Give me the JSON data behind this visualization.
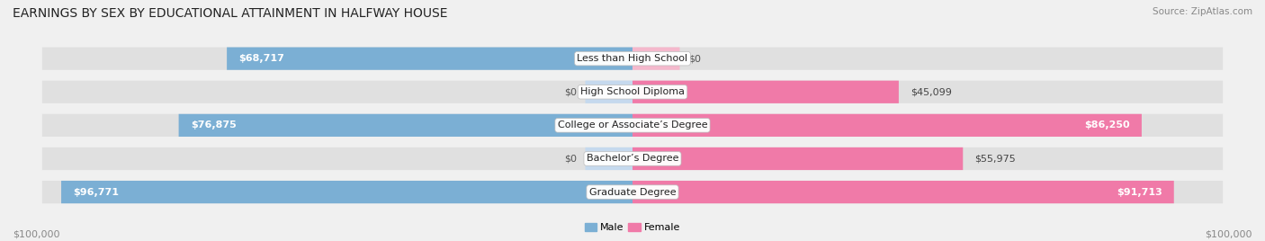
{
  "title": "EARNINGS BY SEX BY EDUCATIONAL ATTAINMENT IN HALFWAY HOUSE",
  "source": "Source: ZipAtlas.com",
  "categories": [
    "Less than High School",
    "High School Diploma",
    "College or Associate’s Degree",
    "Bachelor’s Degree",
    "Graduate Degree"
  ],
  "male_values": [
    68717,
    0,
    76875,
    0,
    96771
  ],
  "female_values": [
    0,
    45099,
    86250,
    55975,
    91713
  ],
  "male_color": "#7bafd4",
  "female_color": "#f07aa8",
  "male_stub_color": "#c5d9ee",
  "female_stub_color": "#f5b8cc",
  "bg_color": "#e2e2e2",
  "max_value": 100000,
  "stub_value": 8000,
  "xlabel_left": "$100,000",
  "xlabel_right": "$100,000",
  "legend_male": "Male",
  "legend_female": "Female",
  "title_fontsize": 10,
  "label_fontsize": 8,
  "value_fontsize": 8,
  "tick_fontsize": 8,
  "background_color": "#f0f0f0"
}
